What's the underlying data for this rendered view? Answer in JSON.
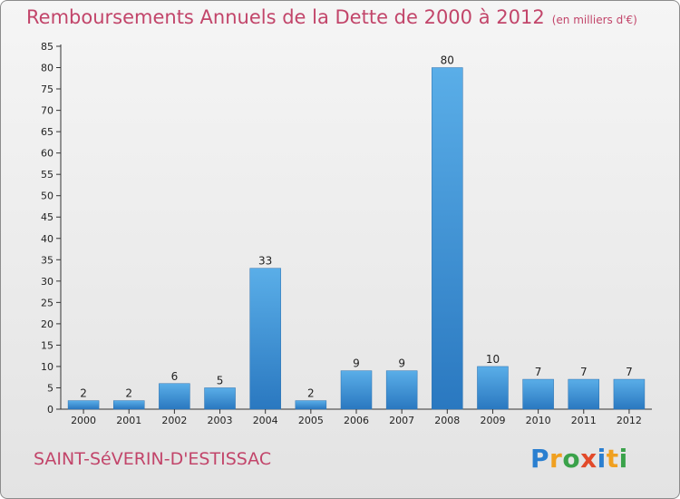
{
  "header": {
    "title": "Remboursements Annuels de la Dette de 2000 à 2012",
    "unit": "(en milliers d'€)"
  },
  "footer": {
    "commune": "SAINT-SéVERIN-D'ESTISSAC",
    "logo_letters": [
      {
        "ch": "P",
        "color": "#2a7fd0"
      },
      {
        "ch": "r",
        "color": "#f0a020"
      },
      {
        "ch": "o",
        "color": "#3aa24a"
      },
      {
        "ch": "x",
        "color": "#e24a2a"
      },
      {
        "ch": "i",
        "color": "#2a7fd0"
      },
      {
        "ch": "t",
        "color": "#f0a020"
      },
      {
        "ch": "i",
        "color": "#3aa24a"
      }
    ]
  },
  "colors": {
    "title": "#c2456a",
    "bar_top": "#5aaee8",
    "bar_bottom": "#2a78c0"
  },
  "chart_data": {
    "type": "bar",
    "title": "Remboursements Annuels de la Dette de 2000 à 2012",
    "categories": [
      "2000",
      "2001",
      "2002",
      "2003",
      "2004",
      "2005",
      "2006",
      "2007",
      "2008",
      "2009",
      "2010",
      "2011",
      "2012"
    ],
    "values": [
      2,
      2,
      6,
      5,
      33,
      2,
      9,
      9,
      80,
      10,
      7,
      7,
      7
    ],
    "ylim": [
      0,
      85
    ],
    "yticks": [
      0,
      5,
      10,
      15,
      20,
      25,
      30,
      35,
      40,
      45,
      50,
      55,
      60,
      65,
      70,
      75,
      80,
      85
    ],
    "grid": false,
    "legend": "none"
  }
}
